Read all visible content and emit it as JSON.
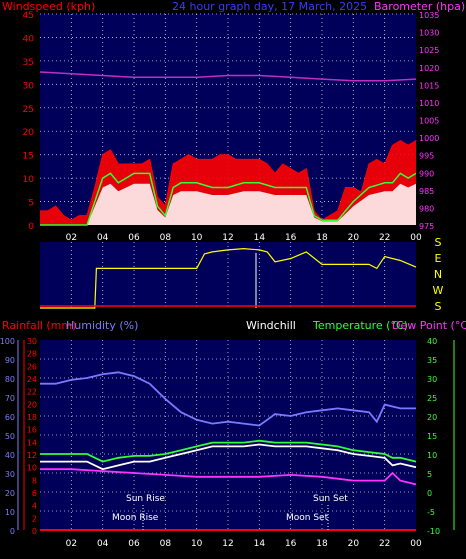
{
  "header": {
    "windspeed_label": "Windspeed (kph)",
    "graph_title": "24 hour graph day, 17 March, 2025",
    "barometer_label": "Barometer (hpa)"
  },
  "legend": {
    "rainfall": "Rainfall (mm)",
    "humidity": "Humidity (%)",
    "windchill": "Windchill",
    "temperature": "Temperature (°C)",
    "dewpoint": "Dew Point (°C)"
  },
  "events": {
    "sun_rise": "Sun Rise",
    "sun_set": "Sun Set",
    "moon_rise": "Moon Rise",
    "moon_set": "Moon Set"
  },
  "colors": {
    "bg": "#000000",
    "plot_bg": "#00005a",
    "grid": "#d0d0d0",
    "red": "#ff0000",
    "magenta": "#ff33ff",
    "blue_axis": "#7a7aff",
    "green": "#33ff33",
    "white": "#ffffff",
    "yellow": "#ffff00",
    "purple": "#c030c0"
  },
  "chart_data": [
    {
      "type": "line",
      "name": "wind_and_barometer",
      "x_ticks": [
        "02",
        "04",
        "06",
        "08",
        "10",
        "12",
        "14",
        "16",
        "18",
        "20",
        "22",
        "00"
      ],
      "y_left": {
        "label": "Windspeed (kph)",
        "ylim": [
          0,
          45
        ],
        "ticks": [
          0,
          5,
          10,
          15,
          20,
          25,
          30,
          35,
          40,
          45
        ]
      },
      "y_right": {
        "label": "Barometer (hpa)",
        "ylim": [
          975,
          1035
        ],
        "ticks": [
          975,
          980,
          985,
          990,
          995,
          1000,
          1005,
          1010,
          1015,
          1020,
          1025,
          1030,
          1035
        ]
      },
      "series": [
        {
          "name": "Gust",
          "color": "#ff0000",
          "x": [
            0,
            0.5,
            1,
            1.5,
            2,
            2.5,
            3,
            3.5,
            4,
            4.5,
            5,
            5.5,
            6,
            6.5,
            7,
            7.5,
            8,
            8.5,
            9,
            9.5,
            10,
            10.5,
            11,
            11.5,
            12,
            12.5,
            13,
            13.5,
            14,
            14.5,
            15,
            15.5,
            16,
            16.5,
            17,
            17.5,
            18,
            18.5,
            19,
            19.5,
            20,
            20.5,
            21,
            21.5,
            22,
            22.5,
            23,
            23.5,
            24
          ],
          "values": [
            3,
            3,
            4,
            2,
            1,
            2,
            2,
            8,
            15,
            16,
            13,
            13,
            13,
            13,
            14,
            6,
            4,
            13,
            14,
            15,
            14,
            14,
            14,
            15,
            15,
            14,
            14,
            14,
            14,
            13,
            11,
            13,
            12,
            11,
            12,
            3,
            1,
            2,
            3,
            8,
            8,
            7,
            13,
            14,
            13,
            17,
            18,
            17,
            18
          ]
        },
        {
          "name": "Average",
          "color": "#33ff33",
          "x": [
            0,
            1,
            2,
            3,
            3.5,
            4,
            4.5,
            5,
            5.5,
            6,
            7,
            7.5,
            8,
            8.5,
            9,
            10,
            11,
            12,
            13,
            14,
            15,
            16,
            17,
            17.5,
            18,
            19,
            19.5,
            20,
            21,
            22,
            22.5,
            23,
            23.5,
            24
          ],
          "values": [
            0,
            0,
            0,
            0,
            5,
            10,
            11,
            9,
            10,
            11,
            11,
            4,
            2,
            8,
            9,
            9,
            8,
            8,
            9,
            9,
            8,
            8,
            8,
            2,
            1,
            1,
            3,
            5,
            8,
            9,
            9,
            11,
            10,
            11
          ]
        },
        {
          "name": "Barometer",
          "color": "#c030c0",
          "x": [
            0,
            2,
            4,
            6,
            8,
            10,
            12,
            14,
            16,
            18,
            20,
            22,
            24
          ],
          "values": [
            1018.5,
            1018,
            1017.5,
            1017,
            1017,
            1017,
            1017.5,
            1017.5,
            1017,
            1016.5,
            1016,
            1016,
            1016.5
          ]
        }
      ]
    },
    {
      "type": "line",
      "name": "wind_direction",
      "y_ticks": [
        "S",
        "E",
        "N",
        "W",
        "S"
      ],
      "series": [
        {
          "name": "Direction",
          "color": "#ffff00",
          "x": [
            0,
            3.5,
            3.6,
            4,
            5,
            6,
            7,
            8,
            9,
            10,
            10.5,
            11,
            12,
            13,
            14,
            14.5,
            15,
            16,
            17,
            18,
            19,
            20,
            21,
            21.5,
            22,
            23,
            24
          ],
          "values": [
            0.0,
            0.0,
            0.6,
            0.6,
            0.6,
            0.6,
            0.6,
            0.6,
            0.6,
            0.6,
            0.82,
            0.85,
            0.88,
            0.9,
            0.88,
            0.85,
            0.7,
            0.75,
            0.85,
            0.66,
            0.66,
            0.66,
            0.66,
            0.6,
            0.78,
            0.72,
            0.62
          ]
        }
      ]
    },
    {
      "type": "line",
      "name": "temperature_humidity_rain",
      "x_ticks": [
        "02",
        "04",
        "06",
        "08",
        "10",
        "12",
        "14",
        "16",
        "18",
        "20",
        "22",
        "00"
      ],
      "y_rain": {
        "label": "Rainfall (mm)",
        "ylim": [
          0,
          30
        ],
        "ticks": [
          0,
          2,
          4,
          6,
          8,
          10,
          12,
          14,
          16,
          18,
          20,
          22,
          24,
          26,
          28,
          30
        ]
      },
      "y_humidity": {
        "label": "Humidity (%)",
        "ylim": [
          0,
          100
        ],
        "ticks": [
          0,
          10,
          20,
          30,
          40,
          50,
          60,
          70,
          80,
          90,
          100
        ]
      },
      "y_temp": {
        "label": "Temperature (°C)",
        "ylim": [
          -10,
          40
        ],
        "ticks": [
          -10,
          -5,
          0,
          5,
          10,
          15,
          20,
          25,
          30,
          35,
          40
        ]
      },
      "series": [
        {
          "name": "Humidity",
          "axis": "humidity",
          "color": "#7a7aff",
          "x": [
            0,
            1,
            2,
            3,
            4,
            5,
            5.5,
            6,
            7,
            8,
            9,
            10,
            11,
            12,
            13,
            14,
            14.5,
            15,
            16,
            17,
            18,
            19,
            20,
            21,
            21.5,
            22,
            23,
            24
          ],
          "values": [
            77,
            77,
            79,
            80,
            82,
            83,
            82,
            81,
            77,
            69,
            62,
            58,
            56,
            57,
            56,
            55,
            58,
            61,
            60,
            62,
            63,
            64,
            63,
            62,
            57,
            66,
            64,
            64
          ]
        },
        {
          "name": "Temperature",
          "axis": "temp",
          "color": "#33ff33",
          "x": [
            0,
            2,
            3,
            4,
            5,
            6,
            7,
            8,
            9,
            10,
            11,
            12,
            13,
            14,
            15,
            16,
            17,
            18,
            19,
            20,
            21,
            22,
            22.5,
            23,
            24
          ],
          "values": [
            10,
            10,
            10,
            8,
            9,
            9.5,
            9.5,
            10,
            11,
            12,
            13,
            13,
            13,
            13.5,
            13,
            13,
            13,
            12.5,
            12,
            11,
            10.5,
            10,
            9,
            9,
            8
          ]
        },
        {
          "name": "Windchill",
          "axis": "temp",
          "color": "#ffffff",
          "x": [
            0,
            2,
            3,
            4,
            5,
            6,
            7,
            8,
            9,
            10,
            11,
            12,
            13,
            14,
            15,
            16,
            17,
            18,
            19,
            20,
            21,
            22,
            22.5,
            23,
            24
          ],
          "values": [
            8,
            8,
            8,
            6,
            7,
            8,
            8,
            9,
            10,
            11,
            12,
            12,
            12,
            12.5,
            12,
            12,
            12,
            11.5,
            11,
            10,
            9.5,
            9,
            7,
            7.5,
            6.5
          ]
        },
        {
          "name": "Dew Point",
          "axis": "temp",
          "color": "#ff33ff",
          "x": [
            0,
            2,
            4,
            6,
            8,
            10,
            12,
            14,
            16,
            18,
            20,
            21,
            22,
            22.5,
            23,
            24
          ],
          "values": [
            6,
            6,
            5.5,
            5,
            4.5,
            4,
            4,
            4,
            4.5,
            4,
            3,
            3,
            3,
            5,
            3,
            2
          ]
        },
        {
          "name": "Rainfall",
          "axis": "rain",
          "color": "#ff0000",
          "x": [
            0,
            24
          ],
          "values": [
            0,
            0
          ]
        }
      ]
    }
  ]
}
